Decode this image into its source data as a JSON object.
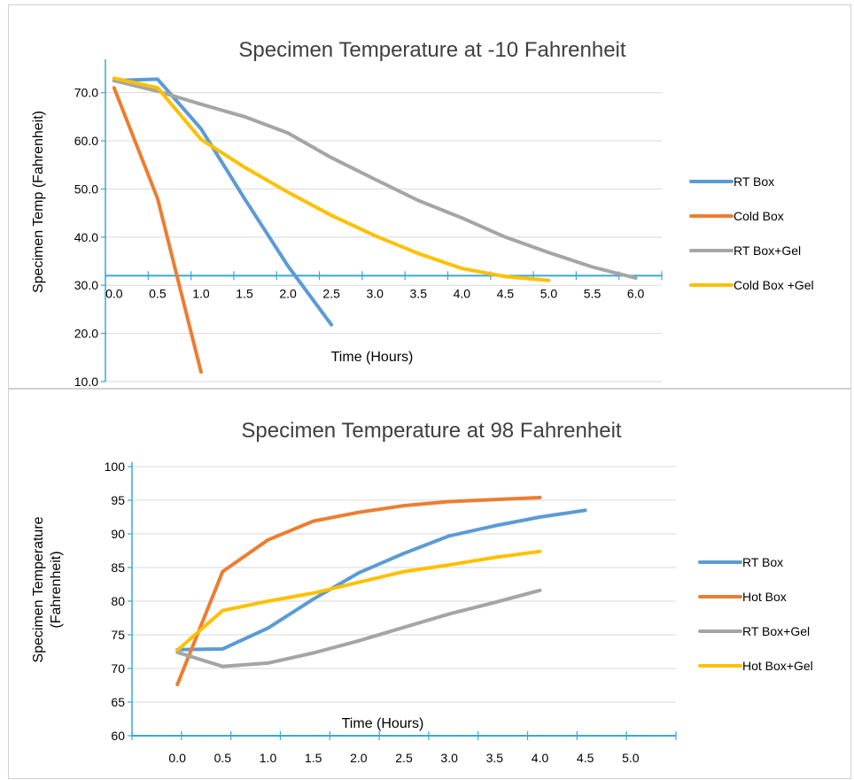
{
  "chart_data": [
    {
      "type": "line",
      "title": "Specimen Temperature at -10 Fahrenheit",
      "xlabel": "Time (Hours)",
      "ylabel": "Specimen Temp (Fahrenheit)",
      "ylim": [
        10,
        76
      ],
      "xlim": [
        -0.1,
        6.3
      ],
      "y_ticks": [
        "10.0",
        "20.0",
        "30.0",
        "40.0",
        "50.0",
        "60.0",
        "70.0"
      ],
      "y_tick_values": [
        10,
        20,
        30,
        40,
        50,
        60,
        70
      ],
      "x_ticks": [
        "0.0",
        "0.5",
        "1.0",
        "1.5",
        "2.0",
        "2.5",
        "3.0",
        "3.5",
        "4.0",
        "4.5",
        "5.0",
        "5.5",
        "6.0"
      ],
      "x_axis_crosses_at": 32,
      "grid": true,
      "legend_position": "right",
      "series": [
        {
          "name": "RT Box",
          "color": "#5B9BD5",
          "x": [
            0.0,
            0.5,
            1.0,
            1.5,
            2.0,
            2.5
          ],
          "y": [
            72.5,
            72.8,
            62.5,
            48.0,
            34.0,
            21.8
          ]
        },
        {
          "name": "Cold Box",
          "color": "#ED7D31",
          "x": [
            0.0,
            0.5,
            1.0
          ],
          "y": [
            71.0,
            48.0,
            12.0
          ]
        },
        {
          "name": "RT Box+Gel",
          "color": "#A5A5A5",
          "x": [
            0.0,
            0.5,
            1.0,
            1.5,
            2.0,
            2.5,
            3.0,
            3.5,
            4.0,
            4.5,
            5.0,
            5.5,
            6.0
          ],
          "y": [
            72.5,
            70.3,
            67.6,
            65.0,
            61.6,
            56.5,
            52.0,
            47.6,
            44.0,
            40.0,
            36.8,
            33.8,
            31.5
          ]
        },
        {
          "name": "Cold Box +Gel",
          "color": "#FFC000",
          "x": [
            0.0,
            0.5,
            1.0,
            1.5,
            2.0,
            2.5,
            3.0,
            3.5,
            4.0,
            4.5,
            5.0
          ],
          "y": [
            73.0,
            71.0,
            60.3,
            54.5,
            49.3,
            44.5,
            40.3,
            36.6,
            33.5,
            31.8,
            31.0
          ]
        }
      ]
    },
    {
      "type": "line",
      "title": "Specimen Temperature at 98 Fahrenheit",
      "xlabel": "Time (Hours)",
      "ylabel": "Specimen Temperature (Fahrenheit)",
      "ylabel_lines": [
        "Specimen Temperature",
        "(Fahrenheit)"
      ],
      "ylim": [
        60,
        100
      ],
      "xlim": [
        -0.5,
        5.5
      ],
      "y_ticks": [
        "60",
        "65",
        "70",
        "75",
        "80",
        "85",
        "90",
        "95",
        "100"
      ],
      "y_tick_values": [
        60,
        65,
        70,
        75,
        80,
        85,
        90,
        95,
        100
      ],
      "x_ticks": [
        "0.0",
        "0.5",
        "1.0",
        "1.5",
        "2.0",
        "2.5",
        "3.0",
        "3.5",
        "4.0",
        "4.5",
        "5.0"
      ],
      "grid": true,
      "legend_position": "right",
      "series": [
        {
          "name": "RT Box",
          "color": "#5B9BD5",
          "x": [
            0.0,
            0.5,
            1.0,
            1.5,
            2.0,
            2.5,
            3.0,
            3.5,
            4.0,
            4.5
          ],
          "y": [
            72.8,
            72.9,
            76.0,
            80.3,
            84.2,
            87.1,
            89.7,
            91.2,
            92.5,
            93.5
          ]
        },
        {
          "name": "Hot Box",
          "color": "#ED7D31",
          "x": [
            0.0,
            0.5,
            1.0,
            1.5,
            2.0,
            2.5,
            3.0,
            3.5,
            4.0
          ],
          "y": [
            67.6,
            84.4,
            89.1,
            91.9,
            93.2,
            94.2,
            94.8,
            95.1,
            95.4
          ]
        },
        {
          "name": "RT Box+Gel",
          "color": "#A5A5A5",
          "x": [
            0.0,
            0.5,
            1.0,
            1.5,
            2.0,
            2.5,
            3.0,
            3.5,
            4.0
          ],
          "y": [
            72.4,
            70.3,
            70.8,
            72.3,
            74.1,
            76.1,
            78.1,
            79.8,
            81.6
          ]
        },
        {
          "name": "Hot Box+Gel",
          "color": "#FFC000",
          "x": [
            0.0,
            0.5,
            1.0,
            1.5,
            2.0,
            2.5,
            3.0,
            3.5,
            4.0
          ],
          "y": [
            72.7,
            78.6,
            80.0,
            81.2,
            82.8,
            84.4,
            85.4,
            86.5,
            87.4
          ]
        }
      ]
    }
  ]
}
